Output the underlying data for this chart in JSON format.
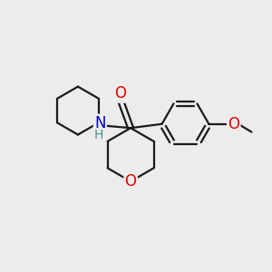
{
  "bg_color": "#ececec",
  "bond_color": "#1a1a1a",
  "bond_width": 1.6,
  "atom_colors": {
    "O": "#e60000",
    "N": "#0000cc",
    "H": "#4a9090"
  },
  "font_size_atom": 12,
  "font_size_H": 10,
  "figsize": [
    3.0,
    3.0
  ],
  "dpi": 100,
  "xlim": [
    0,
    10
  ],
  "ylim": [
    0,
    10
  ]
}
